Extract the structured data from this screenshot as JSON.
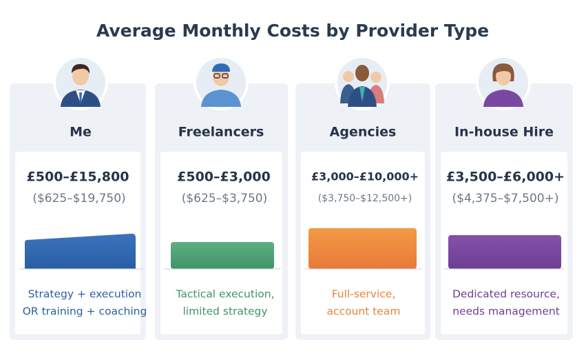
{
  "title": "Average Monthly Costs by Provider Type",
  "cards": [
    {
      "name": "Me",
      "gbp": "£500–£15,800",
      "usd": "($625–$19,750)",
      "description": [
        "Strategy + execution",
        "OR training + coaching"
      ]
    },
    {
      "name": "Freelancers",
      "gbp": "£500–£3,000",
      "usd": "($625–$3,750)",
      "description": [
        "Tactical execution,",
        "limited strategy"
      ]
    },
    {
      "name": "Agencies",
      "gbp": "£3,000–£10,000+",
      "usd": "($3,750–$12,500+)",
      "description": [
        "Full-service,",
        "account team"
      ]
    },
    {
      "name": "In-house Hire",
      "gbp": "£3,500–£6,000+",
      "usd": "($4,375–$7,500+)",
      "description": [
        "Dedicated resource,",
        "needs management"
      ]
    }
  ]
}
